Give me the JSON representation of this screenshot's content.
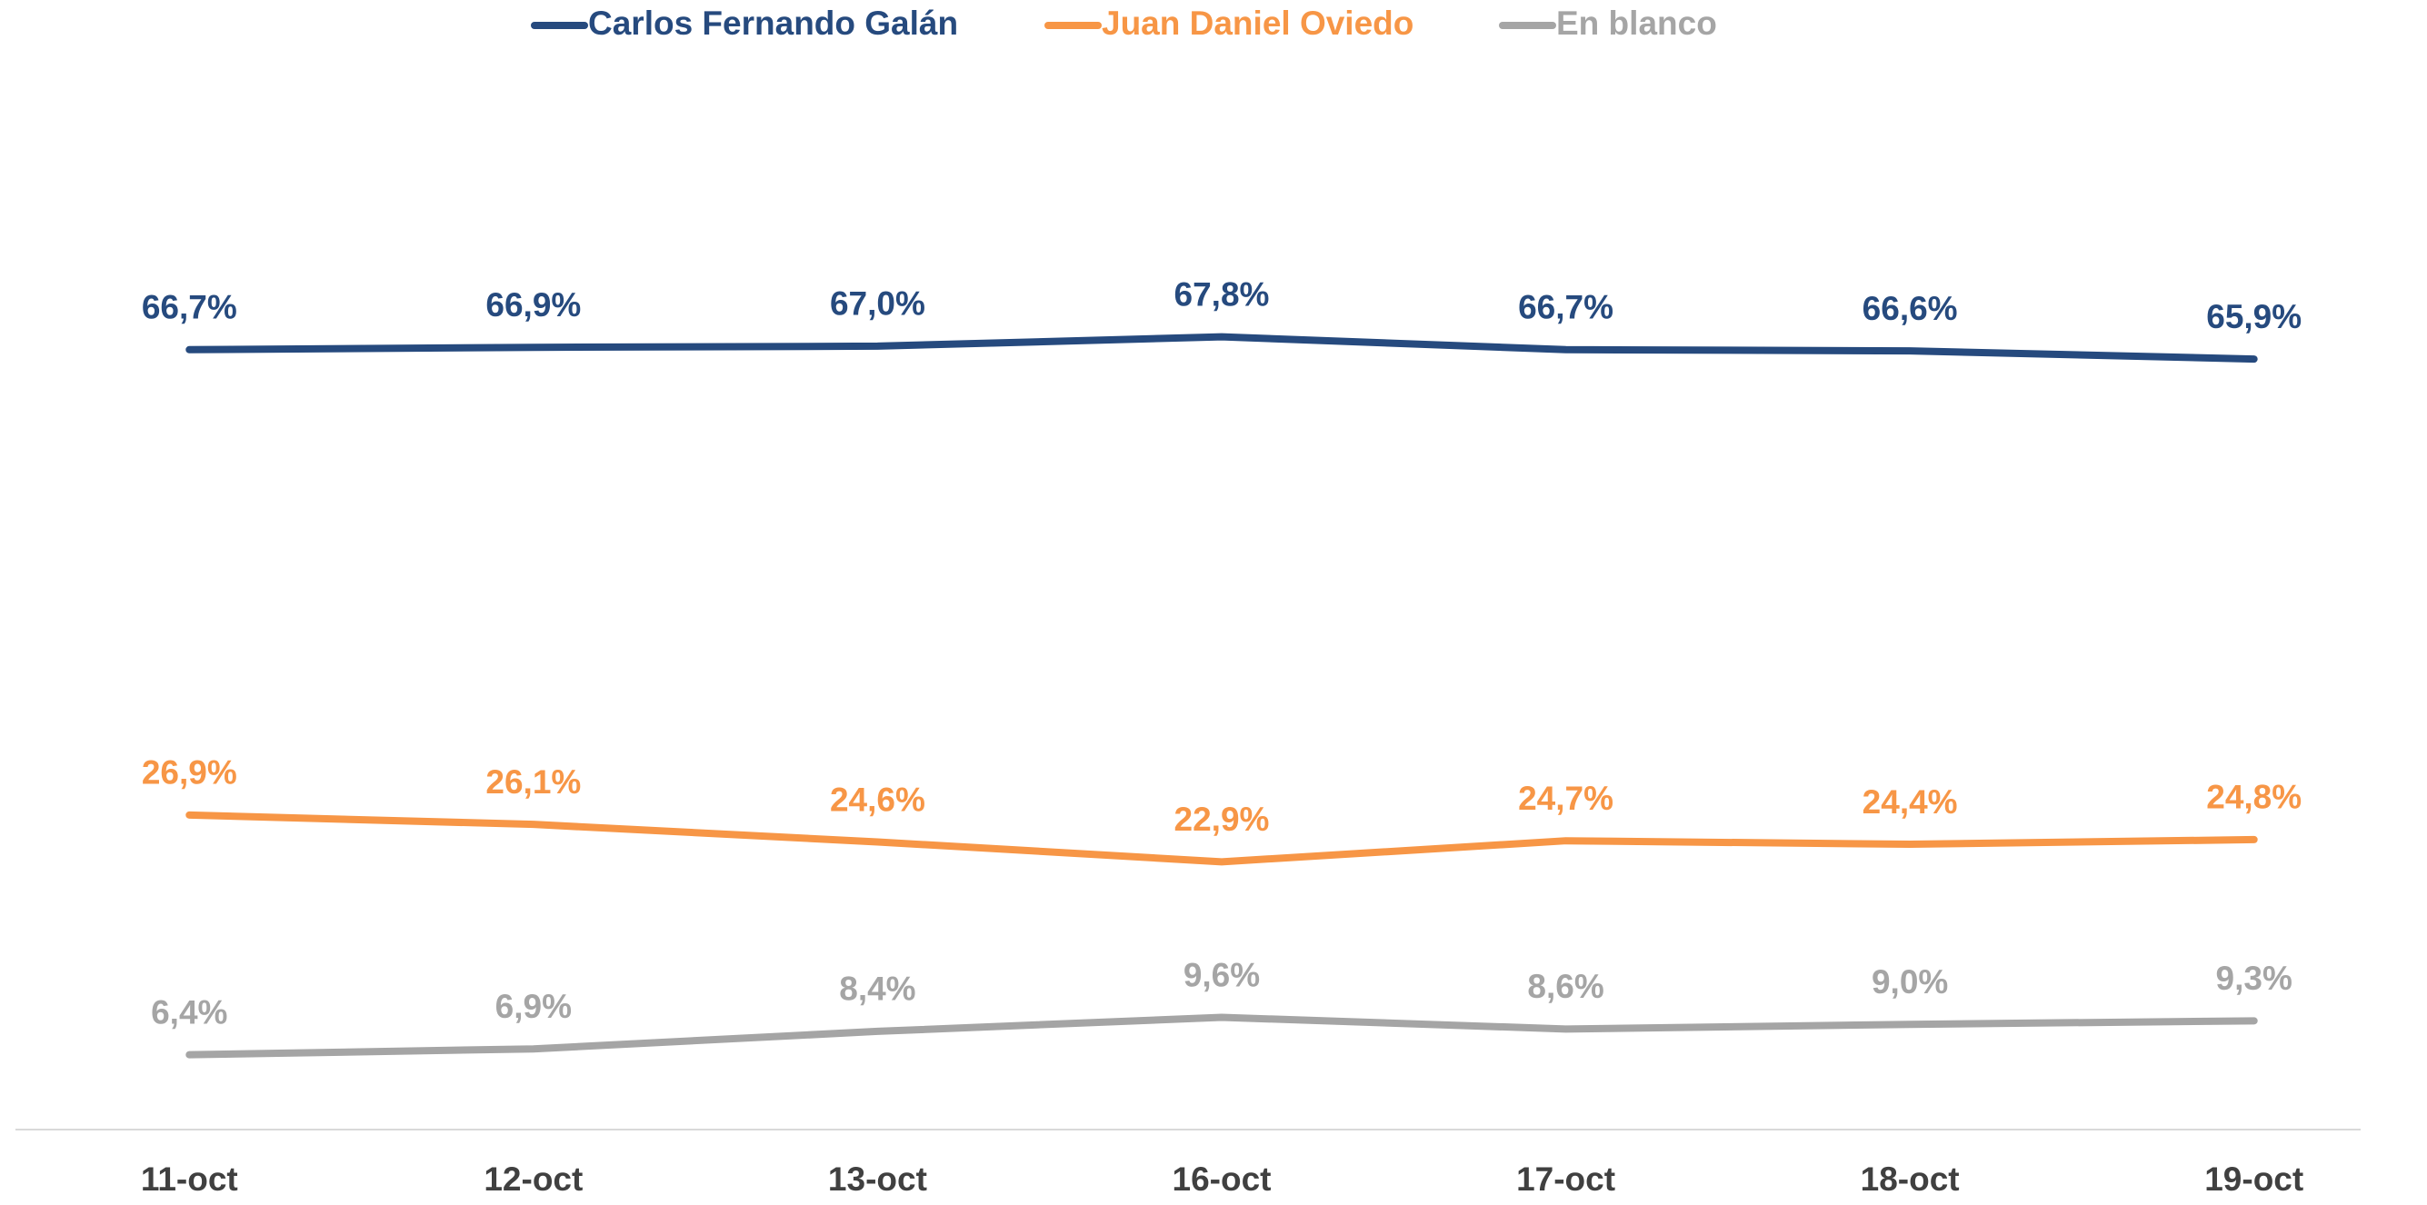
{
  "chart_data": {
    "type": "line",
    "categories": [
      "11-oct",
      "12-oct",
      "13-oct",
      "16-oct",
      "17-oct",
      "18-oct",
      "19-oct"
    ],
    "series": [
      {
        "name": "Carlos Fernando Galán",
        "color": "#264a7e",
        "values": [
          66.7,
          66.9,
          67.0,
          67.8,
          66.7,
          66.6,
          65.9
        ],
        "value_labels": [
          "66,7%",
          "66,9%",
          "67,0%",
          "67,8%",
          "66,7%",
          "66,6%",
          "65,9%"
        ]
      },
      {
        "name": "Juan Daniel Oviedo",
        "color": "#f79646",
        "values": [
          26.9,
          26.1,
          24.6,
          22.9,
          24.7,
          24.4,
          24.8
        ],
        "value_labels": [
          "26,9%",
          "26,1%",
          "24,6%",
          "22,9%",
          "24,7%",
          "24,4%",
          "24,8%"
        ]
      },
      {
        "name": "En blanco",
        "color": "#a5a5a5",
        "values": [
          6.4,
          6.9,
          8.4,
          9.6,
          8.6,
          9.0,
          9.3
        ],
        "value_labels": [
          "6,4%",
          "6,9%",
          "8,4%",
          "9,6%",
          "8,6%",
          "9,0%",
          "9,3%"
        ]
      }
    ],
    "ylim": [
      0,
      90
    ],
    "legend": "top"
  }
}
